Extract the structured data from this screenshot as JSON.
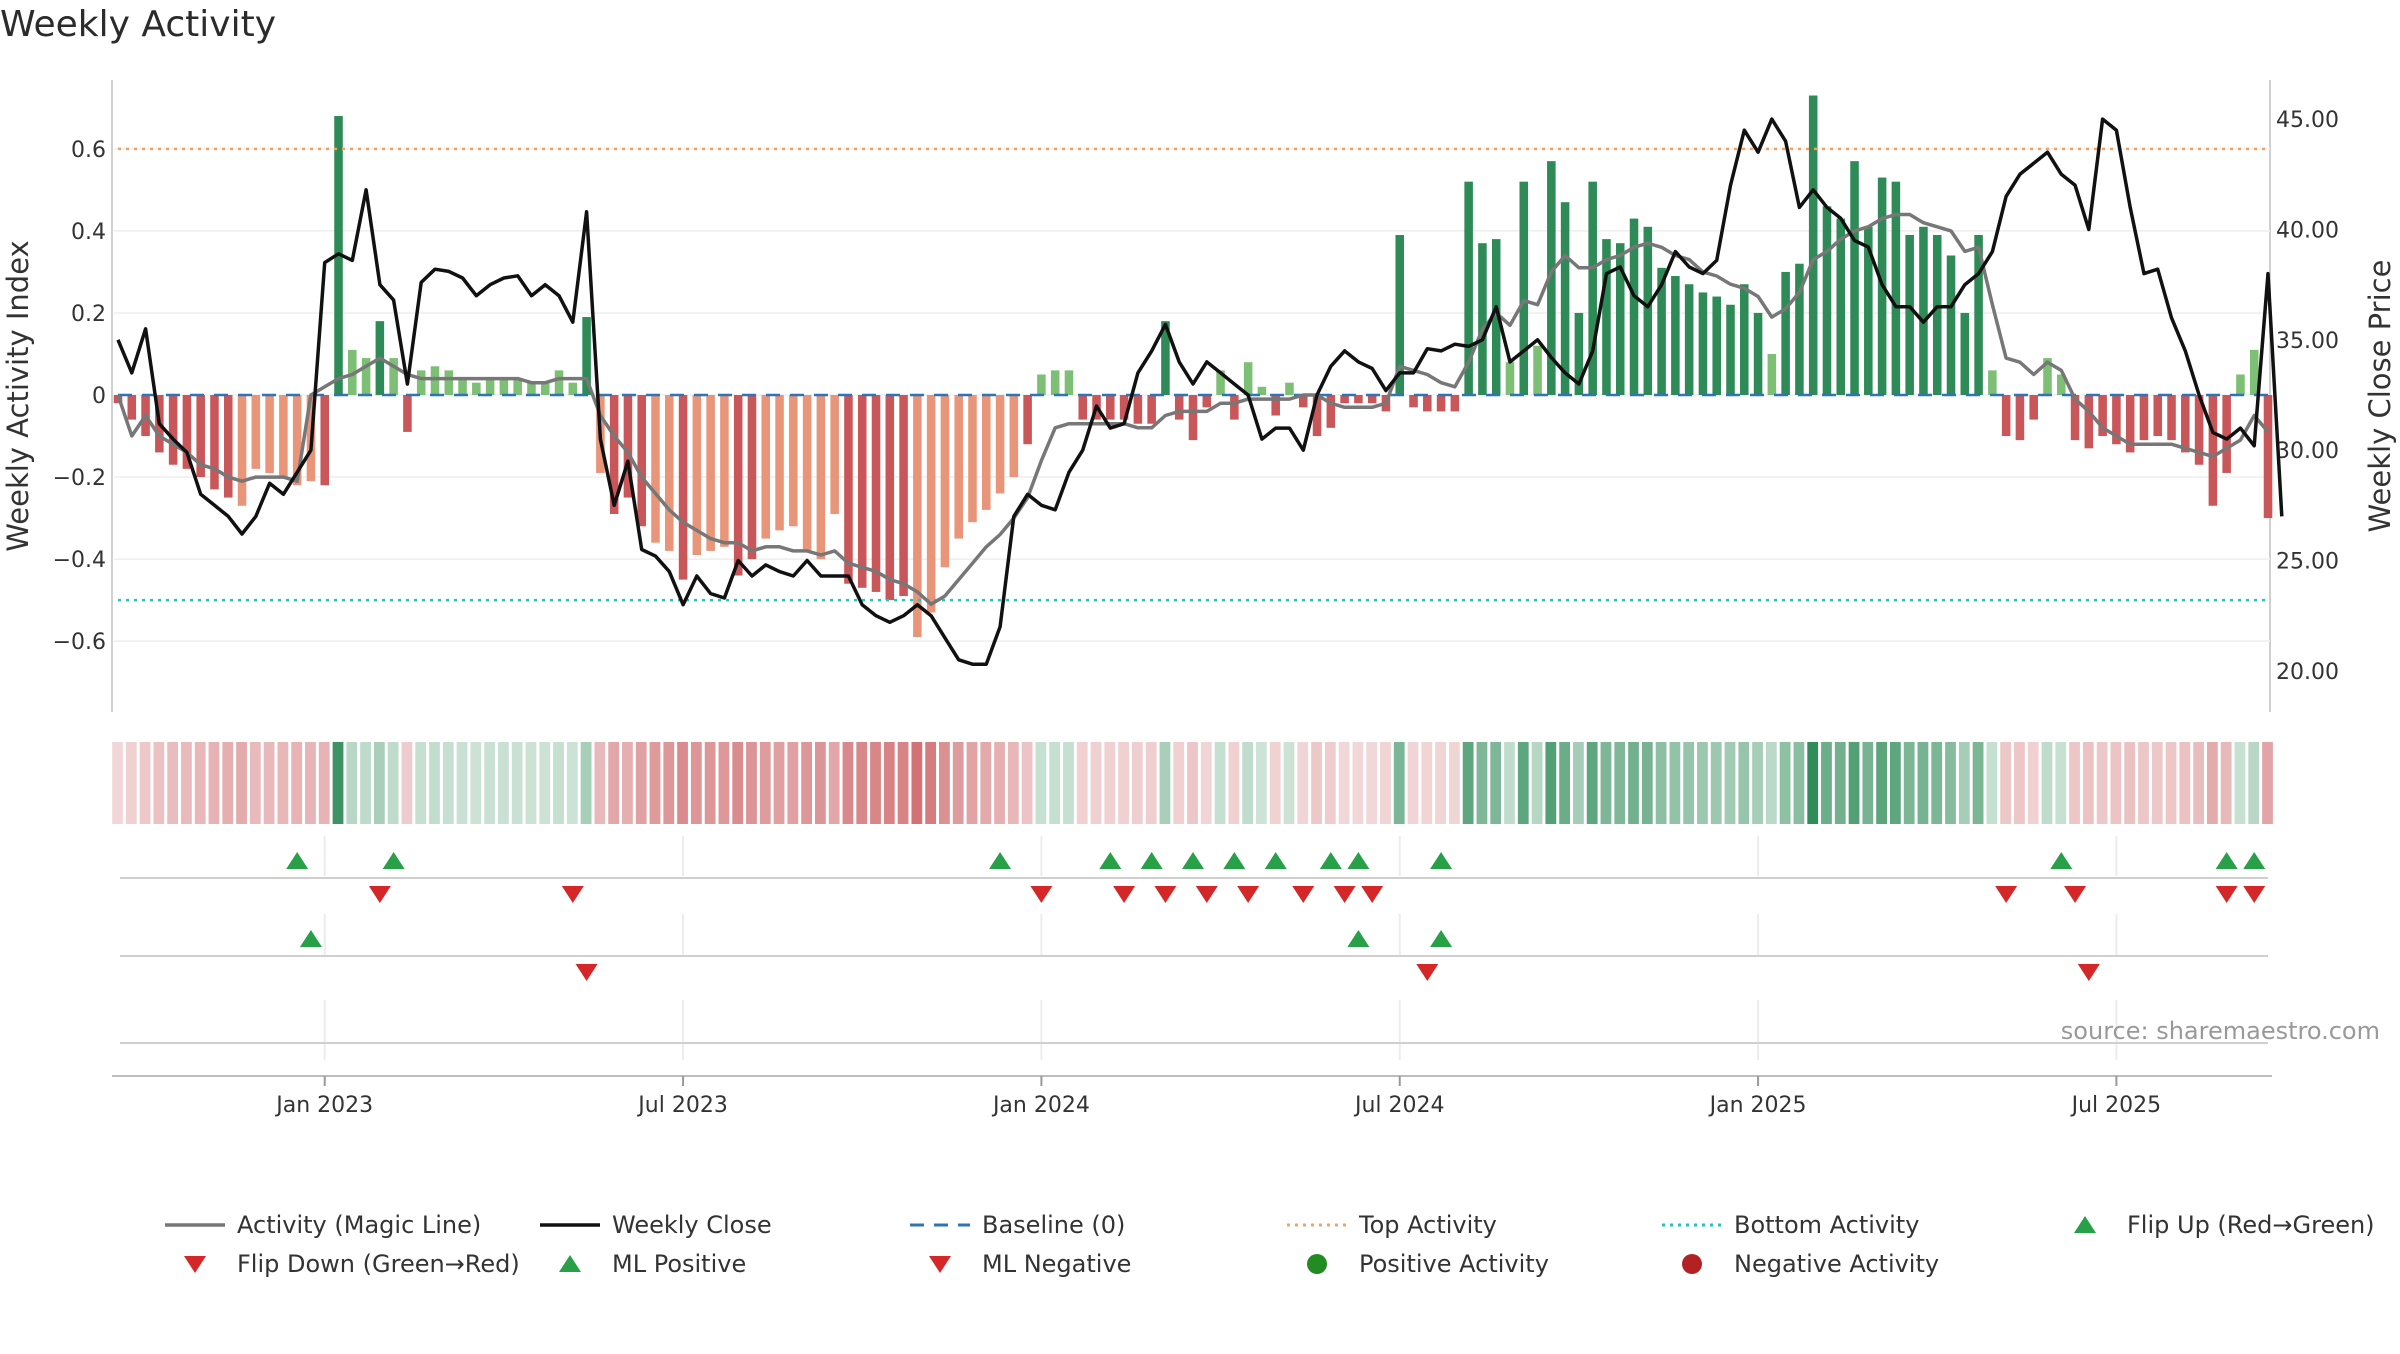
{
  "chart_data": {
    "type": "bar",
    "title": "Weekly Activity",
    "ylabel": "Weekly Activity Index",
    "y2label": "Weekly Close Price",
    "ylim": [
      -0.78,
      0.78
    ],
    "y2lim": [
      18.0,
      47.0
    ],
    "yticks": [
      {
        "value": -0.6,
        "label": "−0.6"
      },
      {
        "value": -0.4,
        "label": "−0.4"
      },
      {
        "value": -0.2,
        "label": "−0.2"
      },
      {
        "value": 0,
        "label": "0"
      },
      {
        "value": 0.2,
        "label": "0.2"
      },
      {
        "value": 0.4,
        "label": "0.4"
      },
      {
        "value": 0.6,
        "label": "0.6"
      }
    ],
    "y2ticks": [
      {
        "value": 20,
        "label": "20.00"
      },
      {
        "value": 25,
        "label": "25.00"
      },
      {
        "value": 30,
        "label": "30.00"
      },
      {
        "value": 35,
        "label": "35.00"
      },
      {
        "value": 40,
        "label": "40.00"
      },
      {
        "value": 45,
        "label": "45.00"
      }
    ],
    "xticks": [
      {
        "week": 15,
        "label": "Jan 2023"
      },
      {
        "week": 41,
        "label": "Jul 2023"
      },
      {
        "week": 67,
        "label": "Jan 2024"
      },
      {
        "week": 93,
        "label": "Jul 2024"
      },
      {
        "week": 119,
        "label": "Jan 2025"
      },
      {
        "week": 145,
        "label": "Jul 2025"
      }
    ],
    "weeks": 157,
    "top_activity": 0.6,
    "bottom_activity": -0.5,
    "activity": [
      -0.02,
      -0.06,
      -0.1,
      -0.14,
      -0.17,
      -0.18,
      -0.2,
      -0.23,
      -0.25,
      -0.27,
      -0.18,
      -0.19,
      -0.2,
      -0.22,
      -0.21,
      -0.22,
      0.68,
      0.11,
      0.09,
      0.18,
      0.09,
      -0.09,
      0.06,
      0.07,
      0.06,
      0.04,
      0.03,
      0.04,
      0.04,
      0.04,
      0.03,
      0.03,
      0.06,
      0.03,
      0.19,
      -0.19,
      -0.29,
      -0.25,
      -0.32,
      -0.36,
      -0.38,
      -0.45,
      -0.39,
      -0.38,
      -0.37,
      -0.44,
      -0.4,
      -0.35,
      -0.33,
      -0.32,
      -0.38,
      -0.4,
      -0.29,
      -0.46,
      -0.47,
      -0.48,
      -0.5,
      -0.49,
      -0.59,
      -0.53,
      -0.42,
      -0.35,
      -0.31,
      -0.28,
      -0.24,
      -0.2,
      -0.12,
      0.05,
      0.06,
      0.06,
      -0.06,
      -0.06,
      -0.06,
      -0.06,
      -0.07,
      -0.07,
      0.18,
      -0.06,
      -0.11,
      -0.03,
      0.06,
      -0.06,
      0.08,
      0.02,
      -0.05,
      0.03,
      -0.03,
      -0.1,
      -0.08,
      -0.02,
      -0.02,
      -0.02,
      -0.04,
      0.39,
      -0.03,
      -0.04,
      -0.04,
      -0.04,
      0.52,
      0.37,
      0.38,
      0.08,
      0.52,
      0.12,
      0.57,
      0.47,
      0.2,
      0.52,
      0.38,
      0.37,
      0.43,
      0.41,
      0.31,
      0.29,
      0.27,
      0.25,
      0.24,
      0.22,
      0.27,
      0.2,
      0.1,
      0.3,
      0.32,
      0.73,
      0.46,
      0.43,
      0.57,
      0.41,
      0.53,
      0.52,
      0.39,
      0.41,
      0.39,
      0.34,
      0.2,
      0.39,
      0.06,
      -0.1,
      -0.11,
      -0.06,
      0.09,
      0.05,
      -0.11,
      -0.13,
      -0.1,
      -0.12,
      -0.14,
      -0.11,
      -0.1,
      -0.11,
      -0.14,
      -0.17,
      -0.27,
      -0.19,
      0.05,
      0.11,
      -0.3
    ],
    "magic_line": [
      0.0,
      -0.1,
      -0.05,
      -0.1,
      -0.12,
      -0.14,
      -0.17,
      -0.18,
      -0.2,
      -0.21,
      -0.2,
      -0.2,
      -0.2,
      -0.21,
      0.0,
      0.02,
      0.04,
      0.05,
      0.07,
      0.09,
      0.07,
      0.05,
      0.04,
      0.04,
      0.04,
      0.04,
      0.04,
      0.04,
      0.04,
      0.04,
      0.03,
      0.03,
      0.04,
      0.04,
      0.04,
      -0.05,
      -0.1,
      -0.14,
      -0.2,
      -0.24,
      -0.28,
      -0.31,
      -0.33,
      -0.35,
      -0.36,
      -0.36,
      -0.38,
      -0.37,
      -0.37,
      -0.38,
      -0.38,
      -0.39,
      -0.38,
      -0.41,
      -0.42,
      -0.43,
      -0.45,
      -0.46,
      -0.48,
      -0.51,
      -0.49,
      -0.45,
      -0.41,
      -0.37,
      -0.34,
      -0.3,
      -0.25,
      -0.16,
      -0.08,
      -0.07,
      -0.07,
      -0.07,
      -0.07,
      -0.07,
      -0.08,
      -0.08,
      -0.05,
      -0.04,
      -0.04,
      -0.04,
      -0.02,
      -0.02,
      -0.01,
      -0.01,
      -0.01,
      -0.01,
      0.0,
      0.0,
      -0.02,
      -0.03,
      -0.03,
      -0.03,
      -0.02,
      0.07,
      0.06,
      0.05,
      0.03,
      0.02,
      0.08,
      0.16,
      0.2,
      0.17,
      0.23,
      0.22,
      0.3,
      0.34,
      0.31,
      0.31,
      0.33,
      0.34,
      0.36,
      0.37,
      0.36,
      0.34,
      0.33,
      0.3,
      0.29,
      0.27,
      0.26,
      0.24,
      0.19,
      0.21,
      0.25,
      0.33,
      0.35,
      0.38,
      0.4,
      0.41,
      0.43,
      0.44,
      0.44,
      0.42,
      0.41,
      0.4,
      0.35,
      0.36,
      0.22,
      0.09,
      0.08,
      0.05,
      0.08,
      0.06,
      -0.01,
      -0.04,
      -0.08,
      -0.1,
      -0.12,
      -0.12,
      -0.12,
      -0.12,
      -0.13,
      -0.14,
      -0.15,
      -0.13,
      -0.11,
      -0.05,
      -0.09
    ],
    "weekly_close": [
      35.0,
      33.5,
      35.5,
      31.2,
      30.5,
      29.9,
      28.0,
      27.5,
      27.0,
      26.2,
      27.0,
      28.5,
      28.0,
      29.0,
      30.0,
      38.5,
      38.9,
      38.6,
      41.8,
      37.5,
      36.8,
      33.0,
      37.6,
      38.2,
      38.1,
      37.8,
      37.0,
      37.5,
      37.8,
      37.9,
      37.0,
      37.5,
      37.0,
      35.8,
      40.8,
      30.5,
      27.5,
      29.5,
      25.5,
      25.2,
      24.5,
      23.0,
      24.3,
      23.5,
      23.3,
      25.0,
      24.3,
      24.8,
      24.5,
      24.3,
      25.0,
      24.3,
      24.3,
      24.3,
      23.0,
      22.5,
      22.2,
      22.5,
      23.0,
      22.5,
      21.5,
      20.5,
      20.3,
      20.3,
      22.0,
      27.0,
      28.0,
      27.5,
      27.3,
      29.0,
      30.0,
      32.0,
      31.0,
      31.2,
      33.5,
      34.5,
      35.7,
      34.0,
      33.0,
      34.0,
      33.5,
      33.0,
      32.5,
      30.5,
      31.0,
      31.0,
      30.0,
      32.5,
      33.8,
      34.5,
      34.0,
      33.7,
      32.7,
      33.5,
      33.5,
      34.6,
      34.5,
      34.8,
      34.7,
      35.0,
      36.5,
      34.0,
      34.5,
      35.0,
      34.2,
      33.5,
      33.0,
      34.5,
      38.0,
      38.3,
      37.0,
      36.5,
      37.5,
      39.0,
      38.3,
      38.0,
      38.6,
      42.0,
      44.5,
      43.5,
      45.0,
      44.0,
      41.0,
      41.8,
      41.0,
      40.5,
      39.5,
      39.2,
      37.5,
      36.5,
      36.5,
      35.8,
      36.5,
      36.5,
      37.5,
      38.0,
      39.0,
      41.5,
      42.5,
      43.0,
      43.5,
      42.5,
      42.0,
      40.0,
      45.0,
      44.5,
      41.0,
      38.0,
      38.2,
      36.0,
      34.5,
      32.5,
      30.8,
      30.5,
      31.0,
      30.2,
      38.0,
      27.0
    ],
    "heat_strip": "color-coded activity strip per week",
    "markers": {
      "flip_up_weeks": [
        13,
        20,
        64,
        72,
        75,
        78,
        81,
        84,
        88,
        90,
        96,
        141,
        153,
        155
      ],
      "flip_down_weeks": [
        19,
        33,
        67,
        73,
        76,
        79,
        82,
        86,
        89,
        91,
        137,
        142,
        153,
        155
      ],
      "ml_positive_weeks": [
        14,
        90,
        96
      ],
      "ml_negative_weeks": [
        34,
        95,
        143
      ]
    },
    "colors": {
      "strong_positive": "#2e8b57",
      "positive": "#7dbf74",
      "strong_negative": "#c9575a",
      "negative": "#e8957a",
      "magic_line": "#777777",
      "weekly_close": "#111111",
      "baseline": "#2f74b5",
      "top_activity": "#f5a05c",
      "bottom_activity": "#22c4c4",
      "flip_up": "#28a047",
      "flip_down": "#d62728"
    }
  },
  "source_label": "source: sharemaestro.com",
  "legend": [
    {
      "label": "Activity (Magic Line)",
      "symbol": "line",
      "color": "#777777"
    },
    {
      "label": "Weekly Close",
      "symbol": "line",
      "color": "#111111"
    },
    {
      "label": "Baseline (0)",
      "symbol": "dash",
      "color": "#2f74b5"
    },
    {
      "label": "Top Activity",
      "symbol": "dot-line",
      "color": "#f5a05c"
    },
    {
      "label": "Bottom Activity",
      "symbol": "dot-line",
      "color": "#22c4c4"
    },
    {
      "label": "Flip Up (Red→Green)",
      "symbol": "tri-up",
      "color": "#28a047"
    },
    {
      "label": "Flip Down (Green→Red)",
      "symbol": "tri-down",
      "color": "#d62728"
    },
    {
      "label": "ML Positive",
      "symbol": "tri-up",
      "color": "#28a047"
    },
    {
      "label": "ML Negative",
      "symbol": "tri-down",
      "color": "#d62728"
    },
    {
      "label": "Positive Activity",
      "symbol": "circle",
      "color": "#228b22"
    },
    {
      "label": "Negative Activity",
      "symbol": "circle",
      "color": "#b22222"
    }
  ]
}
